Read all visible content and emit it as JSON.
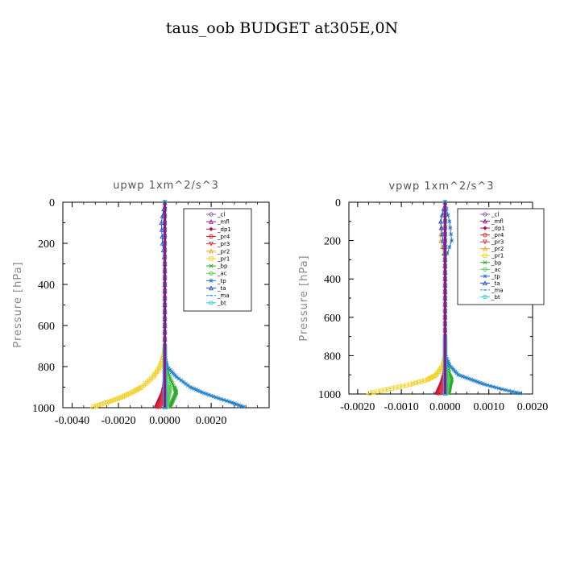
{
  "title": "taus_oob  BUDGET at305E,0N",
  "legend_labels": [
    "_cl",
    "_mfl",
    "_dp1",
    "_pr4",
    "_pr3",
    "_pr2",
    "_pr1",
    "_bp",
    "_ac",
    "_tp",
    "_ta",
    "_ma",
    "_bt"
  ],
  "legend_colors": [
    "#8c5aa0",
    "#8b1a8b",
    "#b0174f",
    "#e02020",
    "#e0304a",
    "#f4a020",
    "#f0d020",
    "#28a828",
    "#50d050",
    "#2070d0",
    "#2050e0",
    "#1e90c8",
    "#20d0e0"
  ],
  "chart_data": [
    {
      "type": "line",
      "title": "upwp   1xm^2/s^3",
      "xlabel": "",
      "ylabel": "Pressure [hPa]",
      "xlim": [
        -0.0044,
        0.0045
      ],
      "ylim": [
        1000,
        0
      ],
      "x_ticks": [
        -0.004,
        -0.002,
        0.0,
        0.002
      ],
      "x_tick_labels": [
        "-0.0040",
        "-0.0020",
        "0.0000",
        "0.0020"
      ],
      "y_ticks": [
        0,
        200,
        400,
        600,
        800,
        1000
      ],
      "y_tick_labels": [
        "0",
        "200",
        "400",
        "600",
        "800",
        "1000"
      ],
      "pressure": [
        0,
        100,
        200,
        300,
        400,
        500,
        600,
        700,
        750,
        800,
        850,
        900,
        925,
        950,
        975,
        1000
      ],
      "series": [
        {
          "name": "_cl",
          "values": [
            0,
            0,
            0,
            0,
            0,
            0,
            0,
            0,
            0,
            0,
            0,
            0,
            0,
            0,
            0,
            0
          ]
        },
        {
          "name": "_mfl",
          "values": [
            0,
            0,
            0,
            0,
            0,
            0,
            0,
            0,
            0,
            0,
            0,
            0,
            0,
            0,
            0,
            0
          ]
        },
        {
          "name": "_dp1",
          "values": [
            0,
            0,
            0,
            0,
            0,
            0,
            0,
            0,
            0,
            0,
            0,
            -5e-05,
            -0.0001,
            -0.0002,
            -0.0003,
            -0.0004
          ]
        },
        {
          "name": "_pr4",
          "values": [
            0,
            0,
            0,
            0,
            0,
            0,
            0,
            0,
            0,
            0,
            0,
            0,
            -5e-05,
            -0.0001,
            -0.0002,
            -0.0003
          ]
        },
        {
          "name": "_pr3",
          "values": [
            0,
            0,
            0,
            0,
            0,
            0,
            0,
            0,
            0,
            0,
            0,
            0,
            0,
            -5e-05,
            -0.0001,
            -0.0002
          ]
        },
        {
          "name": "_pr2",
          "values": [
            0,
            0,
            0,
            0,
            0,
            0,
            0,
            0,
            0,
            0,
            0,
            0,
            0,
            0,
            0,
            0
          ]
        },
        {
          "name": "_pr1",
          "values": [
            0,
            0,
            0,
            0,
            0,
            0,
            0,
            0,
            -5e-05,
            -0.0002,
            -0.0005,
            -0.001,
            -0.0014,
            -0.0019,
            -0.0025,
            -0.0032
          ]
        },
        {
          "name": "_bp",
          "values": [
            0,
            0,
            0,
            0,
            0,
            0,
            0,
            0,
            0,
            5e-05,
            0.0002,
            0.0004,
            0.0005,
            0.0004,
            0.0003,
            0.0002
          ]
        },
        {
          "name": "_ac",
          "values": [
            0,
            0,
            0,
            0,
            0,
            0,
            0,
            0,
            0,
            0,
            0.0001,
            0.0002,
            0.0002,
            0.00015,
            0.0001,
            0.0001
          ]
        },
        {
          "name": "_tp",
          "values": [
            0,
            0,
            0,
            0,
            0,
            0,
            0,
            0,
            0,
            0.0001,
            0.0005,
            0.0011,
            0.0016,
            0.0022,
            0.0029,
            0.0035
          ]
        },
        {
          "name": "_ta",
          "values": [
            0,
            -0.00015,
            -0.0001,
            0,
            0,
            0,
            0,
            0,
            0,
            0,
            0,
            0,
            0,
            0,
            0,
            0
          ]
        },
        {
          "name": "_ma",
          "values": [
            0,
            0,
            0,
            0,
            0,
            0,
            0,
            0,
            0,
            0.0001,
            0.0005,
            0.0011,
            0.0016,
            0.0022,
            0.0028,
            0.0034
          ]
        },
        {
          "name": "_bt",
          "values": [
            0,
            0,
            0,
            0,
            0,
            0,
            0,
            0,
            0,
            0,
            0,
            0,
            0,
            0,
            0,
            0
          ]
        }
      ]
    },
    {
      "type": "line",
      "title": "vpwp   1xm^2/s^3",
      "xlabel": "",
      "ylabel": "Pressure [hPa]",
      "xlim": [
        -0.0022,
        0.002
      ],
      "ylim": [
        1000,
        0
      ],
      "x_ticks": [
        -0.002,
        -0.001,
        0.0,
        0.001,
        0.002
      ],
      "x_tick_labels": [
        "-0.0020",
        "-0.0010",
        "0.0000",
        "0.0010",
        "0.0020"
      ],
      "y_ticks": [
        0,
        200,
        400,
        600,
        800,
        1000
      ],
      "y_tick_labels": [
        "0",
        "200",
        "400",
        "600",
        "800",
        "1000"
      ],
      "pressure": [
        0,
        100,
        200,
        300,
        400,
        500,
        600,
        700,
        750,
        800,
        850,
        900,
        925,
        950,
        975,
        1000
      ],
      "series": [
        {
          "name": "_cl",
          "values": [
            0,
            0,
            0,
            0,
            0,
            0,
            0,
            0,
            0,
            0,
            0,
            0,
            0,
            0,
            0,
            0
          ]
        },
        {
          "name": "_mfl",
          "values": [
            0,
            0,
            0,
            0,
            0,
            0,
            0,
            0,
            0,
            0,
            0,
            0,
            0,
            0,
            0,
            0
          ]
        },
        {
          "name": "_dp1",
          "values": [
            0,
            0,
            0,
            0,
            0,
            0,
            0,
            0,
            0,
            0,
            0,
            -3e-05,
            -6e-05,
            -0.0001,
            -0.00015,
            -0.0002
          ]
        },
        {
          "name": "_pr4",
          "values": [
            0,
            0,
            0,
            0,
            0,
            0,
            0,
            0,
            0,
            0,
            0,
            0,
            -3e-05,
            -6e-05,
            -0.0001,
            -0.00015
          ]
        },
        {
          "name": "_pr3",
          "values": [
            0,
            0,
            0,
            0,
            0,
            0,
            0,
            0,
            0,
            0,
            0,
            0,
            0,
            -3e-05,
            -6e-05,
            -0.0001
          ]
        },
        {
          "name": "_pr2",
          "values": [
            0,
            -0.0001,
            -0.0001,
            0,
            0,
            0,
            0,
            0,
            0,
            0,
            0,
            0,
            0,
            0,
            0,
            0
          ]
        },
        {
          "name": "_pr1",
          "values": [
            0,
            0,
            0,
            0,
            0,
            0,
            0,
            0,
            0,
            0,
            -5e-05,
            -0.0002,
            -0.0004,
            -0.0008,
            -0.0013,
            -0.0018
          ]
        },
        {
          "name": "_bp",
          "values": [
            0,
            0,
            0,
            0,
            0,
            0,
            0,
            0,
            0,
            0,
            5e-05,
            0.0001,
            0.00015,
            0.00012,
            0.0001,
            8e-05
          ]
        },
        {
          "name": "_ac",
          "values": [
            0,
            0,
            0,
            0,
            0,
            0,
            0,
            0,
            0,
            0,
            2e-05,
            5e-05,
            8e-05,
            6e-05,
            4e-05,
            3e-05
          ]
        },
        {
          "name": "_tp",
          "values": [
            0,
            0.0001,
            0.00015,
            0,
            0,
            0,
            0,
            0,
            0,
            0,
            0.0001,
            0.0003,
            0.0006,
            0.0009,
            0.0013,
            0.0018
          ]
        },
        {
          "name": "_ta",
          "values": [
            0,
            -0.0001,
            -5e-05,
            0,
            0,
            0,
            0,
            0,
            0,
            0,
            0,
            0,
            0,
            0,
            0,
            0
          ]
        },
        {
          "name": "_ma",
          "values": [
            0,
            0,
            0,
            0,
            0,
            0,
            0,
            0,
            0,
            0,
            0.0001,
            0.0003,
            0.0006,
            0.0009,
            0.0013,
            0.0017
          ]
        },
        {
          "name": "_bt",
          "values": [
            0,
            0,
            0,
            0,
            0,
            0,
            0,
            0,
            0,
            0,
            0,
            0,
            0,
            0,
            0,
            0
          ]
        }
      ]
    }
  ]
}
